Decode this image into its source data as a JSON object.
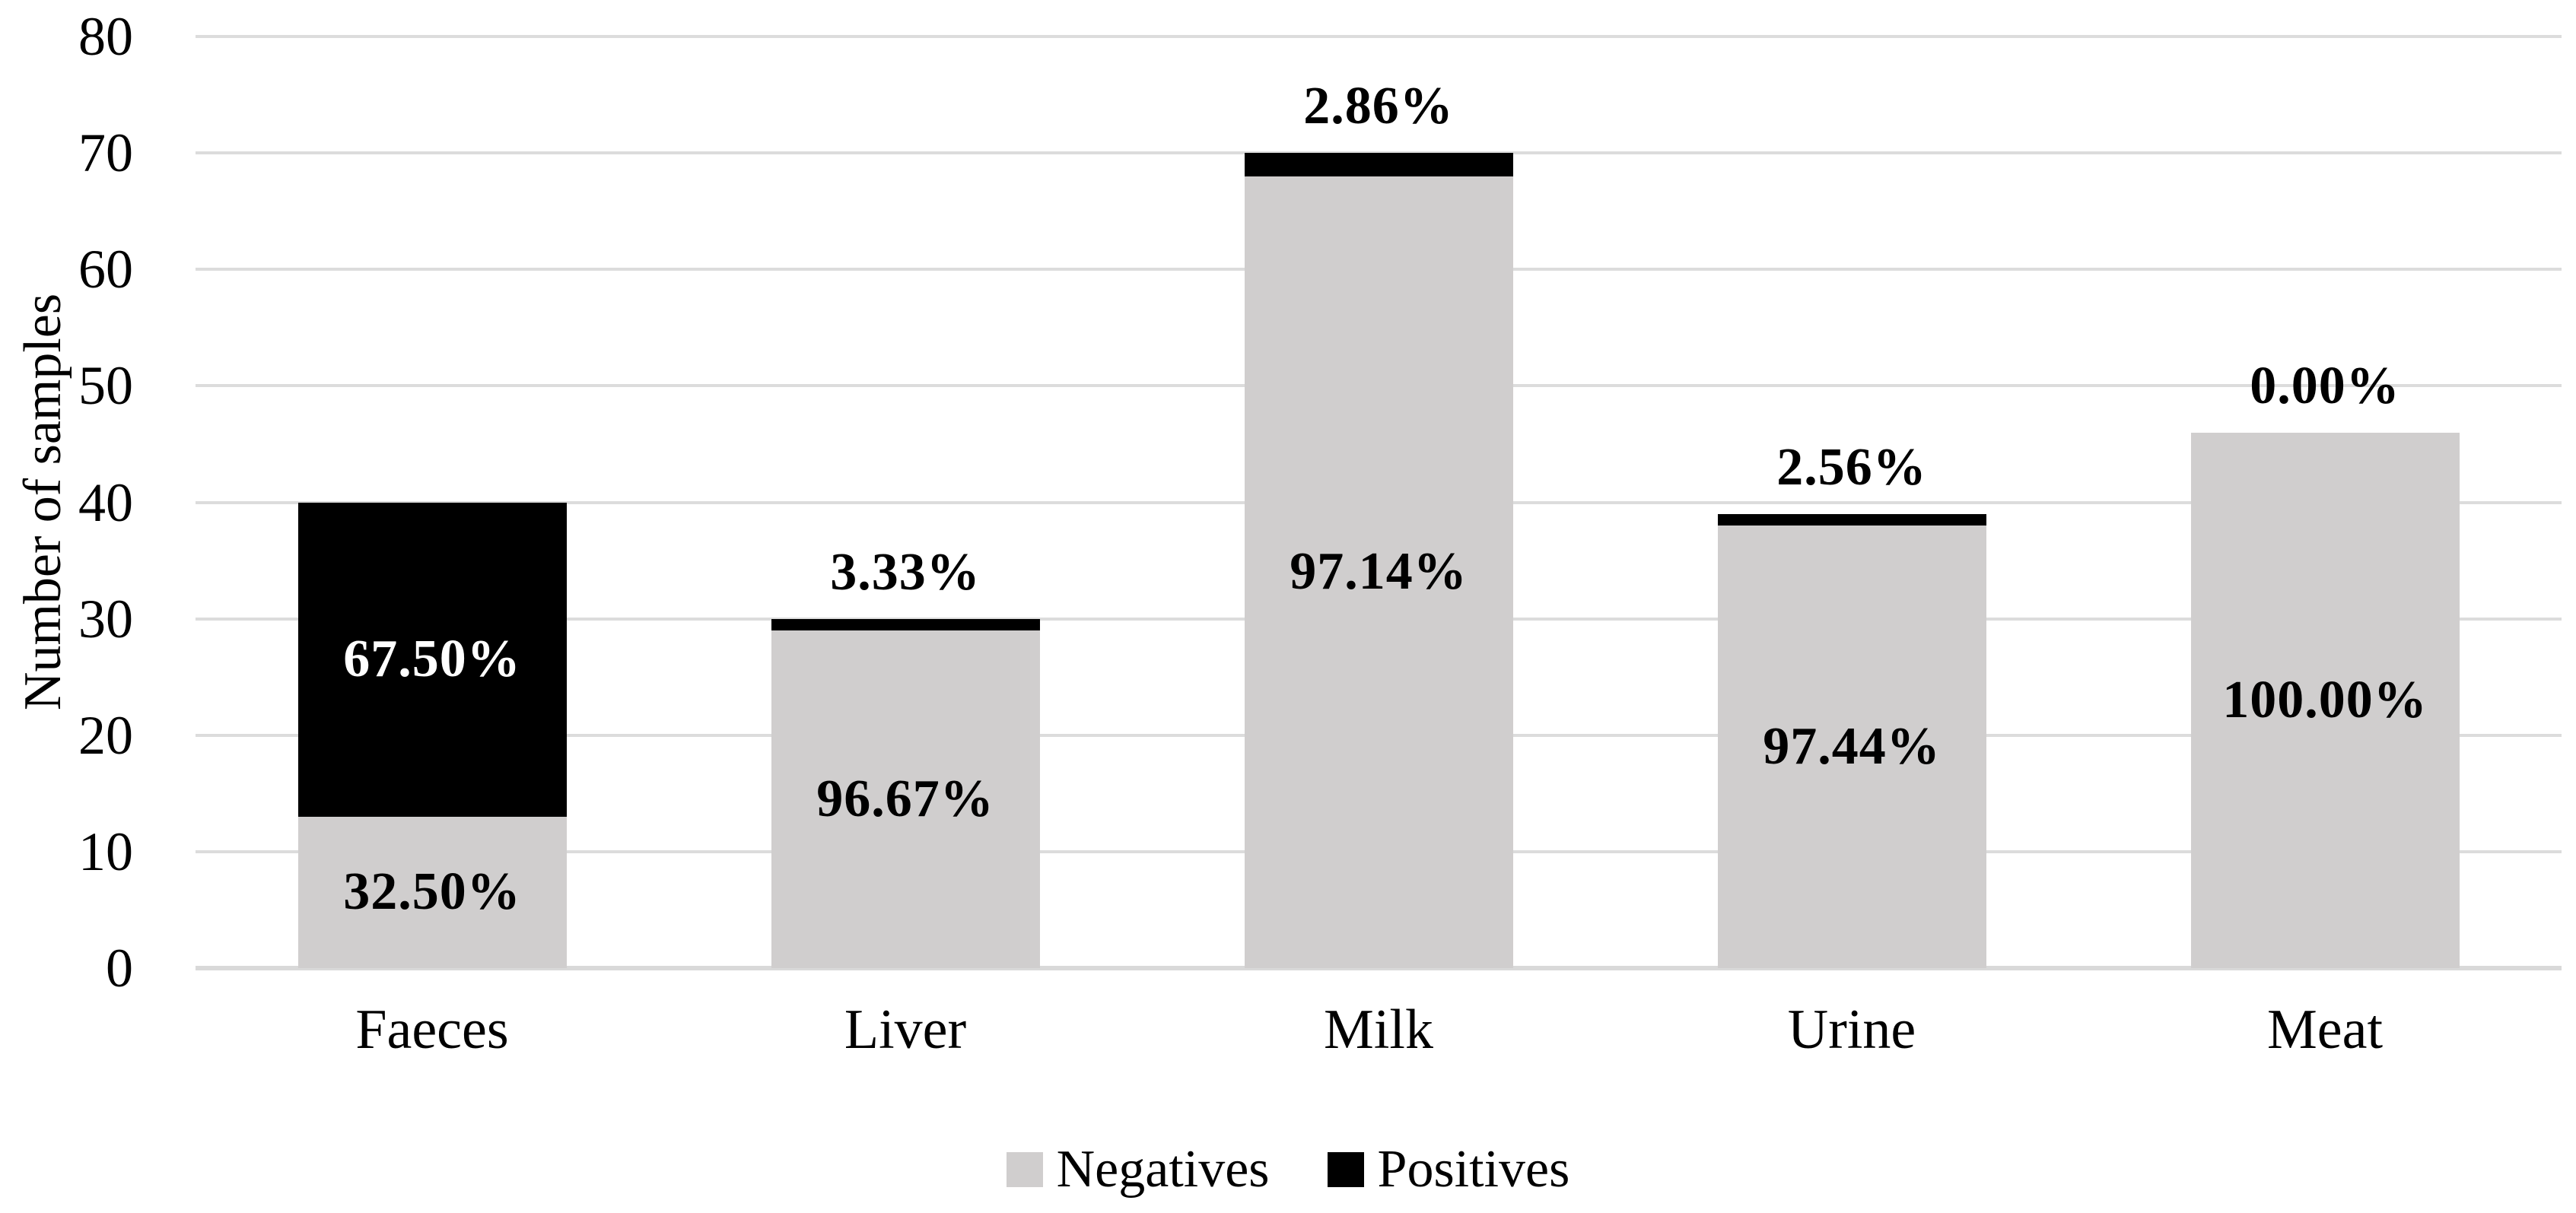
{
  "figure": {
    "background": "#ffffff"
  },
  "y_axis": {
    "title": "Number of samples",
    "tick_color": "#000000"
  },
  "chart_data": {
    "type": "bar",
    "stacked": true,
    "title": "",
    "xlabel": "",
    "ylabel": "Number of samples",
    "ylim": [
      0,
      80
    ],
    "yticks": [
      0,
      10,
      20,
      30,
      40,
      50,
      60,
      70,
      80
    ],
    "grid": true,
    "gridline_color": "#dcdcdc",
    "axis_line_color": "#d9d9d9",
    "legend_position": "bottom",
    "categories": [
      "Faeces",
      "Liver",
      "Milk",
      "Urine",
      "Meat"
    ],
    "totals": [
      40,
      30,
      70,
      39,
      46
    ],
    "series": [
      {
        "name": "Negatives",
        "color": "#d0cece",
        "values": [
          13,
          29,
          68,
          38,
          46
        ],
        "labels": [
          "32.50%",
          "96.67%",
          "97.14%",
          "97.44%",
          "100.00%"
        ],
        "label_color": "#000000"
      },
      {
        "name": "Positives",
        "color": "#000000",
        "values": [
          27,
          1,
          2,
          1,
          0
        ],
        "labels": [
          "67.50%",
          "3.33%",
          "2.86%",
          "2.56%",
          "0.00%"
        ],
        "label_color_inside": "#ffffff",
        "label_color_outside": "#000000"
      }
    ]
  }
}
